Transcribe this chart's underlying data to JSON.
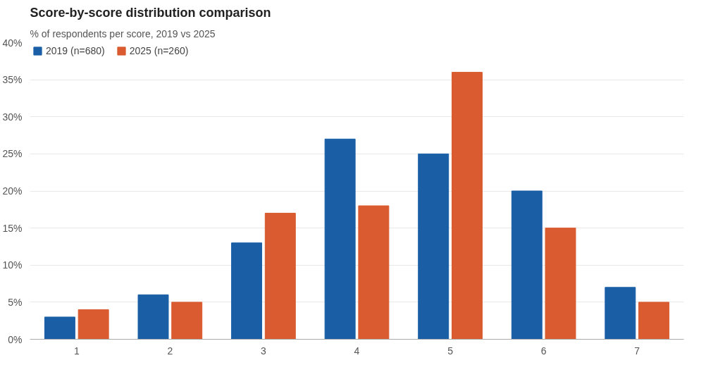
{
  "chart_data": {
    "type": "bar",
    "title": "Score-by-score distribution comparison",
    "subtitle": "% of respondents per score, 2019 vs 2025",
    "categories": [
      "1",
      "2",
      "3",
      "4",
      "5",
      "6",
      "7"
    ],
    "series": [
      {
        "name": "2019 (n=680)",
        "color": "#1a5fa6",
        "values": [
          3,
          6,
          13,
          27,
          25,
          20,
          7
        ]
      },
      {
        "name": "2025 (n=260)",
        "color": "#d95b2f",
        "values": [
          4,
          5,
          17,
          18,
          36,
          15,
          5
        ]
      }
    ],
    "ylim": [
      0,
      40
    ],
    "yticks": [
      {
        "value": 0,
        "label": "0%"
      },
      {
        "value": 5,
        "label": "5%"
      },
      {
        "value": 10,
        "label": "10%"
      },
      {
        "value": 15,
        "label": "15%"
      },
      {
        "value": 20,
        "label": "20%"
      },
      {
        "value": 25,
        "label": "25%"
      },
      {
        "value": 30,
        "label": "30%"
      },
      {
        "value": 35,
        "label": "35%"
      },
      {
        "value": 40,
        "label": "40%"
      }
    ],
    "grid": "y",
    "legend": "top left"
  }
}
